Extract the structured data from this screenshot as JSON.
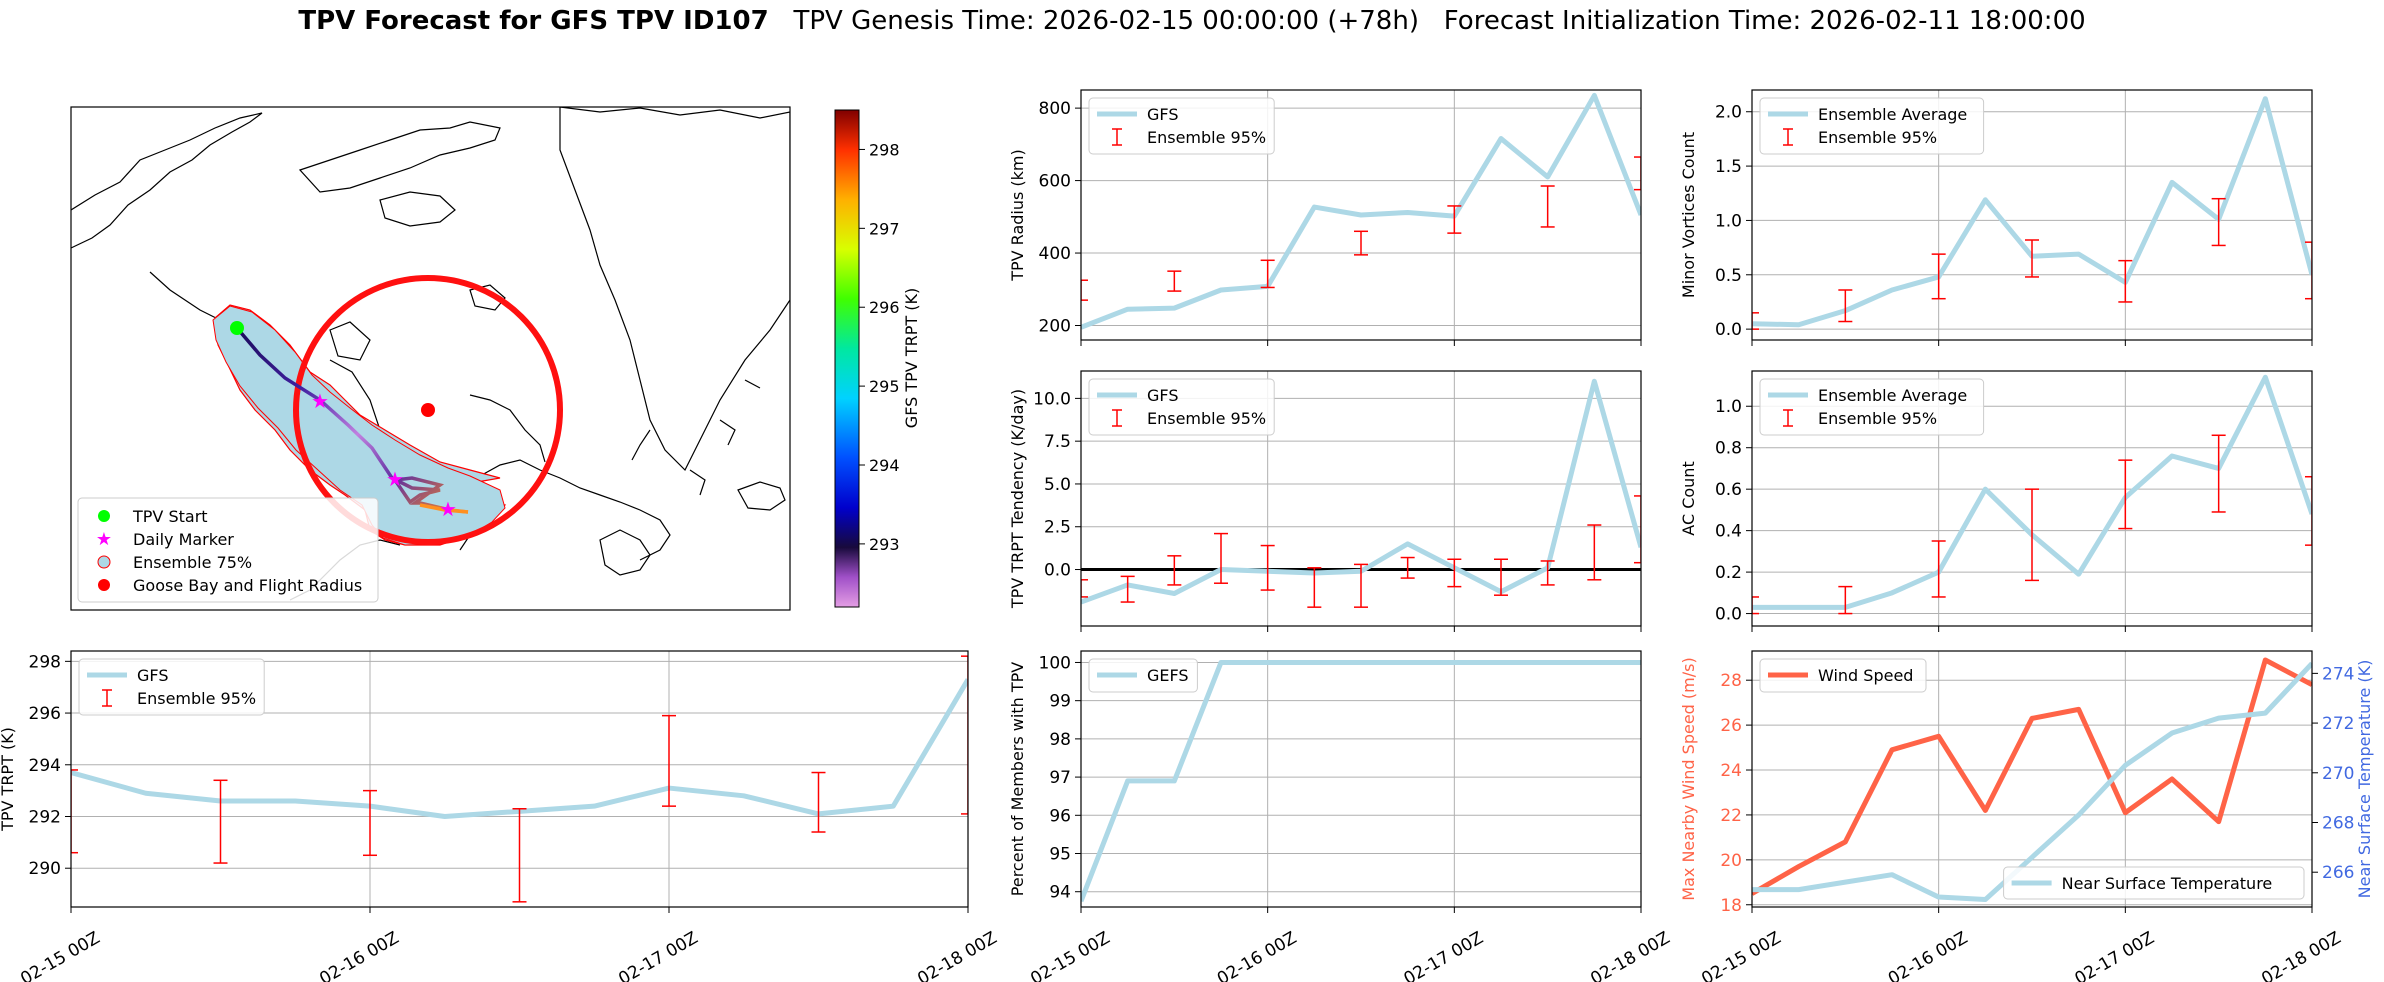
{
  "suptitle": {
    "bold": "TPV Forecast for GFS TPV ID107",
    "genesis": "TPV Genesis Time: 2026-02-15 00:00:00 (+78h)",
    "init": "Forecast Initialization Time: 2026-02-11 18:00:00"
  },
  "map": {
    "colorbar_label": "GFS TPV TRPT (K)",
    "colorbar_ticks": [
      293,
      294,
      295,
      296,
      297,
      298
    ],
    "colorbar_range": [
      292.2,
      298.5
    ],
    "legend": [
      {
        "label": "TPV Start",
        "color": "#00ff00",
        "marker": "circle"
      },
      {
        "label": "Daily Marker",
        "color": "#ff00ff",
        "marker": "star"
      },
      {
        "label": "Ensemble 75%",
        "color": "#add8e6",
        "marker": "patch"
      },
      {
        "label": "Goose Bay and Flight Radius",
        "color": "#ff0000",
        "marker": "circle"
      }
    ],
    "colors": {
      "envelope": "#add8e6",
      "envelope_edge": "#ff0000",
      "radius": "#ff1010",
      "goose_bay": "#ff0000",
      "start": "#00ff00"
    }
  },
  "chart_data": [
    {
      "id": "radius",
      "type": "line",
      "ylabel": "TPV Radius (km)",
      "ylim": [
        160,
        850
      ],
      "yticks": [
        200,
        400,
        600,
        800
      ],
      "x": [
        0,
        0.25,
        0.5,
        0.75,
        1,
        1.25,
        1.5,
        1.75,
        2,
        2.25,
        2.5,
        2.75,
        3
      ],
      "series": [
        {
          "name": "GFS",
          "color": "#add8e6",
          "values": [
            195,
            245,
            248,
            298,
            308,
            527,
            505,
            512,
            502,
            716,
            610,
            835,
            505
          ]
        }
      ],
      "errorbars": {
        "name": "Ensemble 95%",
        "color": "#ff0000",
        "x": [
          0,
          0.5,
          1,
          1.5,
          2,
          2.5,
          3
        ],
        "low": [
          270,
          295,
          305,
          395,
          455,
          472,
          575
        ],
        "high": [
          325,
          350,
          380,
          460,
          530,
          585,
          665
        ]
      },
      "legend": [
        "GFS",
        "Ensemble 95%"
      ],
      "show_xticklabels": false
    },
    {
      "id": "minor",
      "type": "line",
      "ylabel": "Minor Vortices Count",
      "ylim": [
        -0.1,
        2.2
      ],
      "yticks": [
        0.0,
        0.5,
        1.0,
        1.5,
        2.0
      ],
      "x": [
        0,
        0.25,
        0.5,
        0.75,
        1,
        1.25,
        1.5,
        1.75,
        2,
        2.25,
        2.5,
        2.75,
        3
      ],
      "series": [
        {
          "name": "Ensemble Average",
          "color": "#add8e6",
          "values": [
            0.05,
            0.04,
            0.17,
            0.36,
            0.48,
            1.19,
            0.67,
            0.69,
            0.43,
            1.35,
            1.01,
            2.12,
            0.5
          ]
        }
      ],
      "errorbars": {
        "name": "Ensemble 95%",
        "color": "#ff0000",
        "x": [
          0,
          0.5,
          1,
          1.5,
          2,
          2.5,
          3
        ],
        "low": [
          0.0,
          0.07,
          0.28,
          0.48,
          0.25,
          0.77,
          0.28
        ],
        "high": [
          0.15,
          0.36,
          0.69,
          0.82,
          0.63,
          1.2,
          0.8
        ]
      },
      "legend": [
        "Ensemble Average",
        "Ensemble 95%"
      ],
      "show_xticklabels": false
    },
    {
      "id": "tendency",
      "type": "line",
      "ylabel": "TPV TRPT Tendency (K/day)",
      "ylim": [
        -3.3,
        11.6
      ],
      "yticks": [
        0.0,
        2.5,
        5.0,
        7.5,
        10.0
      ],
      "ytick_labels": [
        "0.0",
        "2.5",
        "5.0",
        "7.5",
        "10.0"
      ],
      "zero_line": true,
      "x": [
        0,
        0.25,
        0.5,
        0.75,
        1,
        1.25,
        1.5,
        1.75,
        2,
        2.25,
        2.5,
        2.75,
        3
      ],
      "series": [
        {
          "name": "GFS",
          "color": "#add8e6",
          "values": [
            -1.9,
            -0.9,
            -1.4,
            0.0,
            -0.1,
            -0.2,
            -0.1,
            1.5,
            0.1,
            -1.3,
            0.1,
            11.0,
            1.3
          ]
        }
      ],
      "errorbars": {
        "name": "Ensemble 95%",
        "color": "#ff0000",
        "x": [
          0,
          0.25,
          0.5,
          0.75,
          1,
          1.25,
          1.5,
          1.75,
          2,
          2.25,
          2.5,
          2.75,
          3
        ],
        "low": [
          -1.6,
          -1.9,
          -0.9,
          -0.8,
          -1.2,
          -2.2,
          -2.2,
          -0.5,
          -1.0,
          -1.5,
          -0.9,
          -0.6,
          0.4
        ],
        "high": [
          -0.6,
          -0.4,
          0.8,
          2.1,
          1.4,
          0.1,
          0.3,
          0.7,
          0.6,
          0.6,
          0.5,
          2.6,
          4.3
        ]
      },
      "legend": [
        "GFS",
        "Ensemble 95%"
      ],
      "show_xticklabels": false
    },
    {
      "id": "ac",
      "type": "line",
      "ylabel": "AC Count",
      "ylim": [
        -0.06,
        1.17
      ],
      "yticks": [
        0.0,
        0.2,
        0.4,
        0.6,
        0.8,
        1.0
      ],
      "x": [
        0,
        0.25,
        0.5,
        0.75,
        1,
        1.25,
        1.5,
        1.75,
        2,
        2.25,
        2.5,
        2.75,
        3
      ],
      "series": [
        {
          "name": "Ensemble Average",
          "color": "#add8e6",
          "values": [
            0.03,
            0.03,
            0.03,
            0.1,
            0.2,
            0.6,
            0.38,
            0.19,
            0.56,
            0.76,
            0.7,
            1.14,
            0.48
          ]
        }
      ],
      "errorbars": {
        "name": "Ensemble 95%",
        "color": "#ff0000",
        "x": [
          0,
          0.5,
          1,
          1.5,
          2,
          2.5,
          3
        ],
        "low": [
          0.0,
          0.0,
          0.08,
          0.16,
          0.41,
          0.49,
          0.33
        ],
        "high": [
          0.08,
          0.13,
          0.35,
          0.6,
          0.74,
          0.86,
          0.66
        ]
      },
      "legend": [
        "Ensemble Average",
        "Ensemble 95%"
      ],
      "show_xticklabels": false
    },
    {
      "id": "trpt",
      "type": "line",
      "ylabel": "TPV TRPT (K)",
      "ylim": [
        288.5,
        298.4
      ],
      "yticks": [
        290,
        292,
        294,
        296,
        298
      ],
      "x": [
        0,
        0.25,
        0.5,
        0.75,
        1,
        1.25,
        1.5,
        1.75,
        2,
        2.25,
        2.5,
        2.75,
        3
      ],
      "series": [
        {
          "name": "GFS",
          "color": "#add8e6",
          "values": [
            293.7,
            292.9,
            292.6,
            292.6,
            292.4,
            292.0,
            292.2,
            292.4,
            293.1,
            292.8,
            292.1,
            292.4,
            297.3
          ]
        }
      ],
      "errorbars": {
        "name": "Ensemble 95%",
        "color": "#ff0000",
        "x": [
          0,
          0.5,
          1,
          1.5,
          2,
          2.5,
          3
        ],
        "low": [
          290.6,
          290.2,
          290.5,
          288.7,
          292.4,
          291.4,
          292.1
        ],
        "high": [
          293.8,
          293.4,
          293.0,
          292.3,
          295.9,
          293.7,
          298.2
        ]
      },
      "legend": [
        "GFS",
        "Ensemble 95%"
      ],
      "xticks": [
        "02-15 00Z",
        "02-16 00Z",
        "02-17 00Z",
        "02-18 00Z"
      ],
      "show_xticklabels": true
    },
    {
      "id": "percent",
      "type": "line",
      "ylabel": "Percent of Members with TPV",
      "ylim": [
        93.6,
        100.3
      ],
      "yticks": [
        94,
        95,
        96,
        97,
        98,
        99,
        100
      ],
      "x": [
        0,
        0.25,
        0.5,
        0.75,
        1,
        1.25,
        1.5,
        1.75,
        2,
        2.25,
        2.5,
        2.75,
        3
      ],
      "series": [
        {
          "name": "GEFS",
          "color": "#add8e6",
          "values": [
            93.75,
            96.9,
            96.9,
            100,
            100,
            100,
            100,
            100,
            100,
            100,
            100,
            100,
            100
          ]
        }
      ],
      "legend": [
        "GEFS"
      ],
      "xticks": [
        "02-15 00Z",
        "02-16 00Z",
        "02-17 00Z",
        "02-18 00Z"
      ],
      "show_xticklabels": true
    },
    {
      "id": "wind",
      "type": "line",
      "ylabel": "Max Nearby Wind Speed (m/s)",
      "ylabel_color": "#ff6347",
      "ylim": [
        17.9,
        29.3
      ],
      "yticks": [
        18,
        20,
        22,
        24,
        26,
        28
      ],
      "x": [
        0,
        0.25,
        0.5,
        0.75,
        1,
        1.25,
        1.5,
        1.75,
        2,
        2.25,
        2.5,
        2.75,
        3
      ],
      "series": [
        {
          "name": "Wind Speed",
          "color": "#ff6347",
          "axis": "left",
          "values": [
            18.5,
            19.7,
            20.8,
            24.9,
            25.5,
            22.2,
            26.3,
            26.7,
            22.1,
            23.6,
            21.7,
            28.9,
            27.8
          ]
        },
        {
          "name": "Near Surface Temperature",
          "color": "#add8e6",
          "axis": "right",
          "values": [
            265.3,
            265.3,
            265.6,
            265.9,
            265.0,
            264.9,
            266.6,
            268.3,
            270.3,
            271.6,
            272.2,
            272.4,
            274.4
          ]
        }
      ],
      "y2label": "Near Surface Temperature (K)",
      "y2label_color": "#4169e1",
      "y2lim": [
        264.6,
        274.9
      ],
      "y2ticks": [
        266,
        268,
        270,
        272,
        274
      ],
      "legend": [
        "Wind Speed"
      ],
      "legend2": [
        "Near Surface Temperature"
      ],
      "xticks": [
        "02-15 00Z",
        "02-16 00Z",
        "02-17 00Z",
        "02-18 00Z"
      ],
      "show_xticklabels": true
    }
  ]
}
